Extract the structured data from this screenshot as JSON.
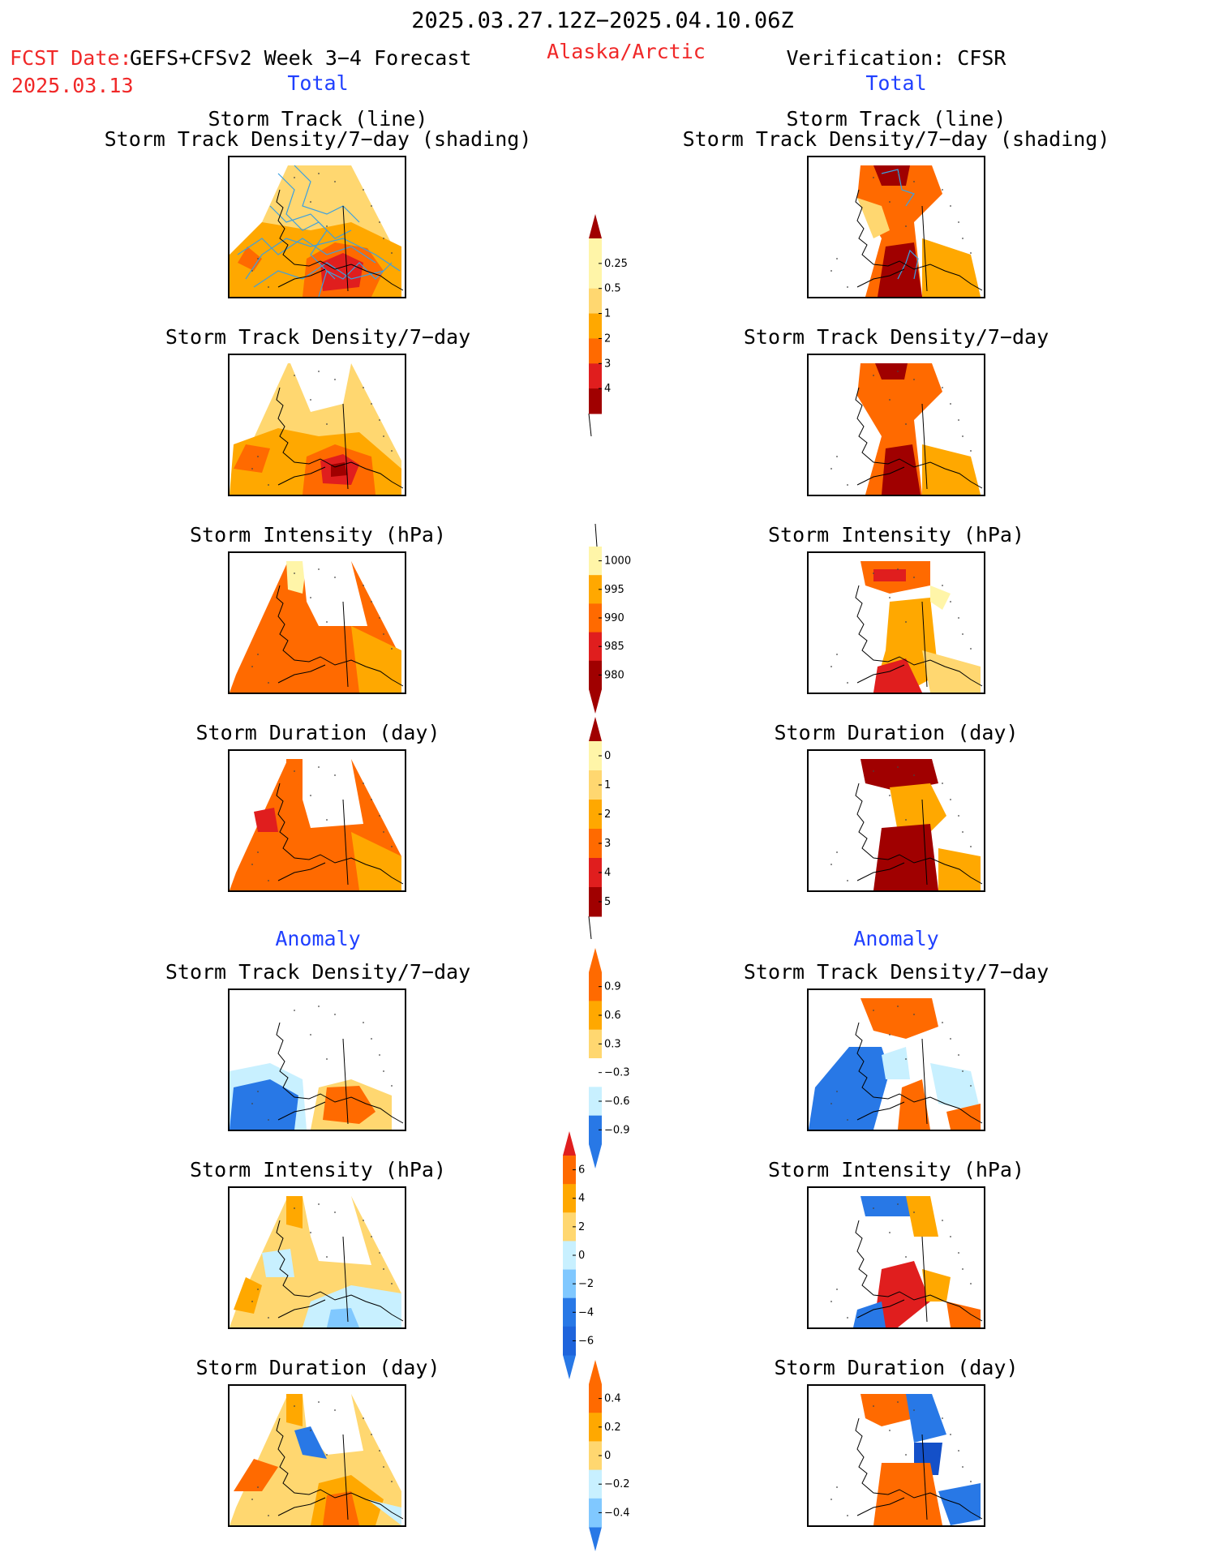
{
  "header": {
    "period": "2025.03.27.12Z−2025.04.10.06Z",
    "fcst_label": "FCST Date:",
    "fcst_model": "GEFS+CFSv2 Week 3−4 Forecast",
    "fcst_date": "2025.03.13",
    "region": "Alaska/Arctic",
    "verification": "Verification: CFSR"
  },
  "sections": {
    "total": "Total",
    "anomaly": "Anomaly"
  },
  "titles": {
    "track_line": "Storm Track (line)",
    "track_density_shading": "Storm Track Density/7−day (shading)",
    "track_density": "Storm Track Density/7−day",
    "intensity": "Storm Intensity (hPa)",
    "duration": "Storm Duration (day)"
  },
  "colors": {
    "very_light": "#fff5a8",
    "light_yellow": "#ffd770",
    "light_orange": "#ffa800",
    "orange": "#ff6a00",
    "red": "#e01e1e",
    "dark_red": "#a00000",
    "light_blue": "#c8f0ff",
    "mid_blue": "#80c8ff",
    "blue": "#2878e6",
    "dark_blue": "#1450c8",
    "track_line": "#3ca0e0"
  },
  "chart_data": [
    {
      "type": "heatmap",
      "title": "Storm Track Density/7−day",
      "legend": [
        "0.25",
        "0.5",
        "1",
        "2",
        "3",
        "4"
      ]
    },
    {
      "type": "heatmap",
      "title": "Storm Intensity (hPa)",
      "legend": [
        "1000",
        "995",
        "990",
        "985",
        "980"
      ]
    },
    {
      "type": "heatmap",
      "title": "Storm Duration (day)",
      "legend": [
        "0",
        "1",
        "2",
        "3",
        "4",
        "5"
      ]
    },
    {
      "type": "heatmap",
      "title": "Storm Track Density/7−day anomaly",
      "legend": [
        "0.9",
        "0.6",
        "0.3",
        "−0.3",
        "−0.6",
        "−0.9"
      ]
    },
    {
      "type": "heatmap",
      "title": "Storm Intensity (hPa) anomaly",
      "legend": [
        "6",
        "4",
        "2",
        "0",
        "−2",
        "−4",
        "−6"
      ]
    },
    {
      "type": "heatmap",
      "title": "Storm Duration (day) anomaly",
      "legend": [
        "0.4",
        "0.2",
        "0",
        "−0.2",
        "−0.4"
      ]
    }
  ]
}
